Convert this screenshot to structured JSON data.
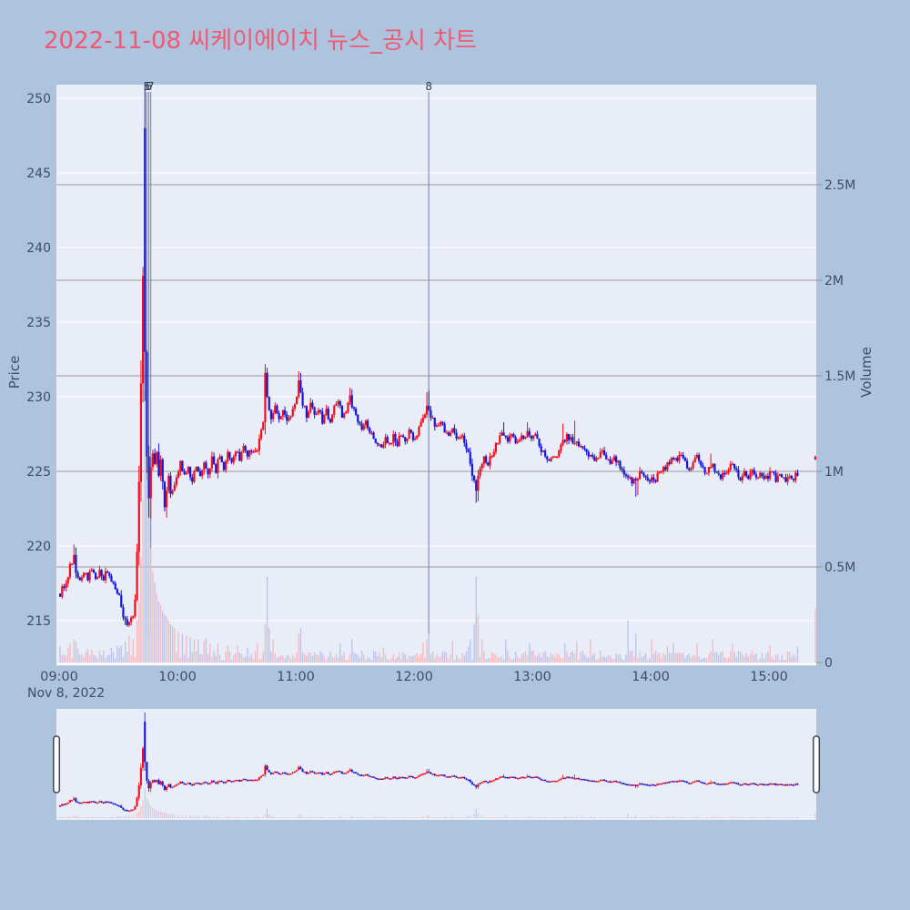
{
  "title": "2022-11-08 씨케이에이치 뉴스_공시 차트",
  "colors": {
    "page_bg": "#aec3de",
    "plot_bg": "#e8edf7",
    "title_text": "#ee5a71",
    "axis_text": "#3e4d68",
    "event_text": "#2f3b4e",
    "grid_price": "#ffffff",
    "grid_volume": "#999999",
    "event_line": "#7187c1",
    "candle_up": "#ee0f1e",
    "candle_down": "#1717d6",
    "volume_up": "#f3bcc1",
    "volume_down": "#bcc5ee",
    "handle_fill": "#ffffff",
    "handle_border": "#41454f"
  },
  "chart_data": {
    "type": "candlestick+volume",
    "title": "2022-11-08 씨케이에이치 뉴스_공시 차트",
    "date_label": "Nov 8, 2022",
    "price_axis": {
      "label": "Price",
      "ticks": [
        250,
        245,
        240,
        235,
        230,
        225,
        220,
        215
      ],
      "visible_range": [
        212.2,
        250.9
      ]
    },
    "volume_axis": {
      "label": "Volume",
      "tick_labels": [
        "2.5M",
        "2M",
        "1.5M",
        "1M",
        "0.5M",
        "0"
      ],
      "tick_values_m": [
        2.5,
        2.0,
        1.5,
        1.0,
        0.5,
        0.0
      ]
    },
    "time_axis": {
      "tick_labels": [
        "09:00",
        "10:00",
        "11:00",
        "12:00",
        "13:00",
        "14:00",
        "15:00"
      ],
      "start_minute": 0,
      "minutes_per_tick": 60
    },
    "events": [
      {
        "label": "5",
        "minute": 44
      },
      {
        "label": "6",
        "minute": 45
      },
      {
        "label": "7",
        "minute": 46
      },
      {
        "label": "8",
        "minute": 187
      }
    ],
    "session_minutes": 375,
    "price_anchors": [
      [
        0,
        216.8
      ],
      [
        1,
        216.4
      ],
      [
        2,
        217.4
      ],
      [
        3,
        217.0
      ],
      [
        4,
        217.6
      ],
      [
        6,
        218.6
      ],
      [
        8,
        219.4
      ],
      [
        9,
        218.4
      ],
      [
        11,
        217.6
      ],
      [
        13,
        218.3
      ],
      [
        15,
        217.9
      ],
      [
        17,
        218.3
      ],
      [
        19,
        217.8
      ],
      [
        21,
        218.2
      ],
      [
        23,
        217.9
      ],
      [
        25,
        218.2
      ],
      [
        27,
        217.8
      ],
      [
        29,
        217.3
      ],
      [
        31,
        216.5
      ],
      [
        33,
        215.2
      ],
      [
        35,
        214.8
      ],
      [
        37,
        215.2
      ],
      [
        38,
        215.5
      ],
      [
        39,
        216.5
      ],
      [
        40,
        219.5
      ],
      [
        41,
        224.5
      ],
      [
        42,
        231.0
      ],
      [
        43,
        238.0
      ],
      [
        44,
        233.0
      ],
      [
        45,
        226.0
      ],
      [
        46,
        223.2
      ],
      [
        47,
        225.4
      ],
      [
        48,
        226.3
      ],
      [
        49,
        225.4
      ],
      [
        50,
        226.2
      ],
      [
        51,
        224.6
      ],
      [
        52,
        225.6
      ],
      [
        53,
        224.4
      ],
      [
        54,
        222.6
      ],
      [
        55,
        223.8
      ],
      [
        56,
        224.6
      ],
      [
        57,
        223.4
      ],
      [
        58,
        223.9
      ],
      [
        60,
        224.6
      ],
      [
        62,
        225.6
      ],
      [
        64,
        224.6
      ],
      [
        66,
        225.2
      ],
      [
        68,
        224.4
      ],
      [
        70,
        225.4
      ],
      [
        72,
        224.8
      ],
      [
        74,
        225.6
      ],
      [
        76,
        224.9
      ],
      [
        78,
        225.8
      ],
      [
        80,
        225.1
      ],
      [
        82,
        226.0
      ],
      [
        84,
        225.3
      ],
      [
        86,
        226.3
      ],
      [
        88,
        225.6
      ],
      [
        90,
        226.5
      ],
      [
        92,
        225.8
      ],
      [
        94,
        226.8
      ],
      [
        96,
        226.0
      ],
      [
        98,
        226.5
      ],
      [
        100,
        226.2
      ],
      [
        102,
        227.0
      ],
      [
        104,
        228.5
      ],
      [
        105,
        231.5
      ],
      [
        106,
        230.0
      ],
      [
        107,
        229.2
      ],
      [
        108,
        228.6
      ],
      [
        110,
        229.3
      ],
      [
        112,
        228.5
      ],
      [
        114,
        229.0
      ],
      [
        116,
        228.3
      ],
      [
        118,
        228.9
      ],
      [
        120,
        229.3
      ],
      [
        121,
        230.2
      ],
      [
        122,
        231.2
      ],
      [
        123,
        230.2
      ],
      [
        124,
        229.6
      ],
      [
        126,
        228.8
      ],
      [
        128,
        229.5
      ],
      [
        130,
        228.7
      ],
      [
        132,
        229.3
      ],
      [
        134,
        228.4
      ],
      [
        136,
        229.0
      ],
      [
        138,
        228.3
      ],
      [
        140,
        229.2
      ],
      [
        142,
        229.8
      ],
      [
        144,
        228.6
      ],
      [
        146,
        229.2
      ],
      [
        148,
        230.0
      ],
      [
        150,
        229.0
      ],
      [
        152,
        228.3
      ],
      [
        154,
        227.8
      ],
      [
        156,
        228.3
      ],
      [
        158,
        227.6
      ],
      [
        160,
        227.2
      ],
      [
        162,
        226.8
      ],
      [
        164,
        226.5
      ],
      [
        166,
        227.2
      ],
      [
        168,
        226.8
      ],
      [
        170,
        227.4
      ],
      [
        172,
        226.9
      ],
      [
        174,
        227.5
      ],
      [
        176,
        227.0
      ],
      [
        178,
        227.7
      ],
      [
        180,
        227.2
      ],
      [
        182,
        227.6
      ],
      [
        184,
        228.3
      ],
      [
        186,
        229.0
      ],
      [
        187,
        229.6
      ],
      [
        188,
        229.0
      ],
      [
        190,
        228.4
      ],
      [
        192,
        227.9
      ],
      [
        194,
        228.3
      ],
      [
        196,
        227.8
      ],
      [
        198,
        227.3
      ],
      [
        200,
        227.7
      ],
      [
        202,
        227.1
      ],
      [
        204,
        227.5
      ],
      [
        206,
        226.9
      ],
      [
        208,
        226.2
      ],
      [
        210,
        224.6
      ],
      [
        212,
        223.9
      ],
      [
        214,
        225.3
      ],
      [
        216,
        225.9
      ],
      [
        218,
        225.5
      ],
      [
        220,
        226.1
      ],
      [
        222,
        226.8
      ],
      [
        224,
        227.3
      ],
      [
        226,
        227.5
      ],
      [
        228,
        227.1
      ],
      [
        230,
        227.3
      ],
      [
        232,
        226.9
      ],
      [
        234,
        227.1
      ],
      [
        236,
        227.3
      ],
      [
        238,
        227.5
      ],
      [
        240,
        227.1
      ],
      [
        242,
        227.3
      ],
      [
        244,
        226.8
      ],
      [
        246,
        226.3
      ],
      [
        248,
        225.9
      ],
      [
        250,
        225.7
      ],
      [
        252,
        226.0
      ],
      [
        254,
        226.4
      ],
      [
        256,
        227.0
      ],
      [
        258,
        227.3
      ],
      [
        260,
        227.1
      ],
      [
        262,
        226.8
      ],
      [
        264,
        226.9
      ],
      [
        266,
        226.6
      ],
      [
        268,
        226.4
      ],
      [
        270,
        226.1
      ],
      [
        272,
        225.8
      ],
      [
        274,
        226.1
      ],
      [
        276,
        226.3
      ],
      [
        278,
        225.9
      ],
      [
        280,
        225.6
      ],
      [
        282,
        225.8
      ],
      [
        284,
        225.5
      ],
      [
        286,
        225.2
      ],
      [
        288,
        224.7
      ],
      [
        290,
        224.5
      ],
      [
        292,
        224.3
      ],
      [
        294,
        224.7
      ],
      [
        296,
        224.9
      ],
      [
        298,
        224.6
      ],
      [
        300,
        224.5
      ],
      [
        302,
        224.3
      ],
      [
        304,
        224.7
      ],
      [
        306,
        225.0
      ],
      [
        308,
        225.3
      ],
      [
        310,
        225.6
      ],
      [
        312,
        226.0
      ],
      [
        314,
        225.7
      ],
      [
        316,
        226.0
      ],
      [
        318,
        225.6
      ],
      [
        320,
        225.2
      ],
      [
        322,
        225.6
      ],
      [
        324,
        225.9
      ],
      [
        326,
        225.3
      ],
      [
        328,
        224.8
      ],
      [
        330,
        225.2
      ],
      [
        332,
        225.5
      ],
      [
        334,
        224.9
      ],
      [
        336,
        224.6
      ],
      [
        338,
        224.9
      ],
      [
        340,
        225.2
      ],
      [
        342,
        225.5
      ],
      [
        344,
        224.9
      ],
      [
        346,
        224.5
      ],
      [
        348,
        224.8
      ],
      [
        350,
        224.6
      ],
      [
        352,
        224.9
      ],
      [
        354,
        224.5
      ],
      [
        356,
        224.8
      ],
      [
        358,
        224.4
      ],
      [
        360,
        224.7
      ],
      [
        362,
        224.9
      ],
      [
        364,
        224.5
      ],
      [
        366,
        224.8
      ],
      [
        368,
        224.4
      ],
      [
        370,
        224.7
      ],
      [
        372,
        224.5
      ],
      [
        374,
        224.7
      ],
      [
        375,
        224.6
      ]
    ],
    "open_overrides": [
      [
        43,
        248.0
      ]
    ],
    "wick_overrides_high": [
      [
        7,
        220.1
      ],
      [
        8,
        219.9
      ],
      [
        42,
        238.6
      ],
      [
        43,
        252.0
      ],
      [
        104,
        232.2
      ],
      [
        121,
        231.7
      ],
      [
        122,
        231.6
      ],
      [
        147,
        230.6
      ],
      [
        148,
        230.5
      ],
      [
        186,
        230.3
      ],
      [
        187,
        230.4
      ],
      [
        225,
        228.3
      ],
      [
        237,
        228.3
      ],
      [
        255,
        228.2
      ],
      [
        261,
        228.4
      ],
      [
        330,
        226.2
      ]
    ],
    "wick_overrides_low": [
      [
        33,
        214.7
      ],
      [
        34,
        214.6
      ],
      [
        35,
        214.6
      ],
      [
        45,
        221.9
      ],
      [
        46,
        221.8
      ],
      [
        54,
        221.9
      ],
      [
        211,
        222.9
      ],
      [
        212,
        223.0
      ],
      [
        292,
        223.3
      ],
      [
        293,
        223.4
      ]
    ],
    "volume_spikes_m": [
      [
        5,
        0.1
      ],
      [
        7,
        0.12
      ],
      [
        8,
        0.11
      ],
      [
        31,
        0.09
      ],
      [
        33,
        0.11
      ],
      [
        35,
        0.14
      ],
      [
        37,
        0.12
      ],
      [
        39,
        0.22
      ],
      [
        40,
        0.32
      ],
      [
        41,
        0.55
      ],
      [
        42,
        0.85
      ],
      [
        43,
        1.42
      ],
      [
        44,
        0.95
      ],
      [
        45,
        0.78
      ],
      [
        46,
        0.6
      ],
      [
        47,
        0.48
      ],
      [
        48,
        0.42
      ],
      [
        49,
        0.36
      ],
      [
        50,
        0.32
      ],
      [
        51,
        0.3
      ],
      [
        52,
        0.27
      ],
      [
        53,
        0.25
      ],
      [
        54,
        0.24
      ],
      [
        55,
        0.22
      ],
      [
        56,
        0.2
      ],
      [
        57,
        0.19
      ],
      [
        58,
        0.18
      ],
      [
        60,
        0.16
      ],
      [
        62,
        0.15
      ],
      [
        64,
        0.14
      ],
      [
        66,
        0.13
      ],
      [
        68,
        0.12
      ],
      [
        70,
        0.12
      ],
      [
        73,
        0.11
      ],
      [
        76,
        0.1
      ],
      [
        80,
        0.1
      ],
      [
        85,
        0.09
      ],
      [
        90,
        0.09
      ],
      [
        95,
        0.08
      ],
      [
        100,
        0.1
      ],
      [
        104,
        0.2
      ],
      [
        105,
        0.45
      ],
      [
        106,
        0.18
      ],
      [
        108,
        0.12
      ],
      [
        121,
        0.15
      ],
      [
        122,
        0.18
      ],
      [
        142,
        0.1
      ],
      [
        148,
        0.12
      ],
      [
        164,
        0.08
      ],
      [
        186,
        0.12
      ],
      [
        187,
        0.15
      ],
      [
        208,
        0.12
      ],
      [
        210,
        0.2
      ],
      [
        211,
        0.45
      ],
      [
        212,
        0.25
      ],
      [
        214,
        0.12
      ],
      [
        226,
        0.12
      ],
      [
        238,
        0.1
      ],
      [
        256,
        0.1
      ],
      [
        262,
        0.11
      ],
      [
        288,
        0.22
      ],
      [
        292,
        0.15
      ],
      [
        300,
        0.12
      ],
      [
        311,
        0.1
      ],
      [
        323,
        0.1
      ],
      [
        331,
        0.12
      ],
      [
        341,
        0.1
      ],
      [
        360,
        0.09
      ],
      [
        374,
        0.08
      ]
    ],
    "closing_auction": {
      "minute": 383,
      "price": 225.9,
      "volume_m": 0.28
    }
  }
}
